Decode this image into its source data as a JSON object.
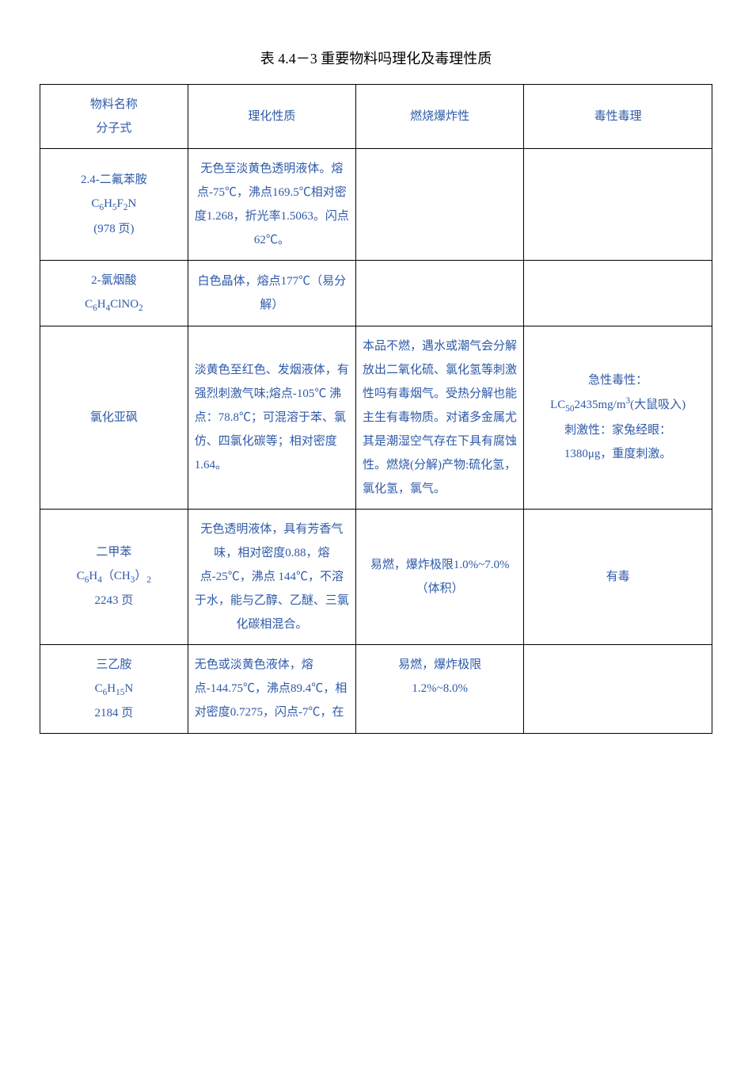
{
  "title_prefix": "表 ",
  "title_number": "4.4－3",
  "title_suffix": " 重要物料吗理化及毒理性质",
  "headers": {
    "col1a": "物料名称",
    "col1b": "分子式",
    "col2": "理化性质",
    "col3": "燃烧爆炸性",
    "col4": "毒性毒理"
  },
  "rows": [
    {
      "name_line1": "2.4-二氟苯胺",
      "formula_html": "C<sub>6</sub>H<sub>5</sub>F<sub>2</sub>N",
      "name_line3": "(978 页)",
      "prop": "无色至淡黄色透明液体。熔点-75℃，沸点169.5℃相对密度1.268，折光率1.5063。闪点 62℃。",
      "burn": "",
      "tox": ""
    },
    {
      "name_line1": "2-氯烟酸",
      "formula_html": "C<sub>6</sub>H<sub>4</sub>ClNO<sub>2</sub>",
      "prop": "白色晶体，熔点177℃（易分解）",
      "burn": "",
      "tox": ""
    },
    {
      "name_line1": "氯化亚砜",
      "prop": "淡黄色至红色、发烟液体，有强烈刺激气味;熔点-105℃ 沸点：78.8℃；可混溶于苯、氯仿、四氯化碳等；相对密度1.64。",
      "burn": "本品不燃，遇水或潮气会分解放出二氧化硫、氯化氢等刺激性吗有毒烟气。受热分解也能主生有毒物质。对诸多金属尤其是潮湿空气存在下具有腐蚀性。燃烧(分解)产物:硫化氢，氯化氢，氯气。",
      "tox_line1": "急性毒性：",
      "tox_line2_html": "LC<sub>50</sub>2435mg/m<sup>3</sup>(大鼠吸入)",
      "tox_line3": "刺激性：家兔经眼：",
      "tox_line4": "1380μg，重度刺激。"
    },
    {
      "name_line1": "二甲苯",
      "formula_html": "C<sub>6</sub>H<sub>4</sub>（CH<sub>3</sub>）<sub>2</sub>",
      "name_line3": "2243 页",
      "prop": "无色透明液体，具有芳香气味，相对密度0.88，熔点-25℃，沸点 144℃，不溶于水，能与乙醇、乙醚、三氯化碳相混合。",
      "burn": "易燃，爆炸极限1.0%~7.0%（体积）",
      "tox": "有毒"
    },
    {
      "name_line1": "三乙胺",
      "formula_html": "C<sub>6</sub>H<sub>15</sub>N",
      "name_line3": "2184 页",
      "prop": "无色或淡黄色液体，熔点-144.75℃，沸点89.4℃，相对密度0.7275，闪点-7℃，在",
      "burn_line1": "易燃，爆炸极限",
      "burn_line2": "1.2%~8.0%",
      "tox": ""
    }
  ]
}
